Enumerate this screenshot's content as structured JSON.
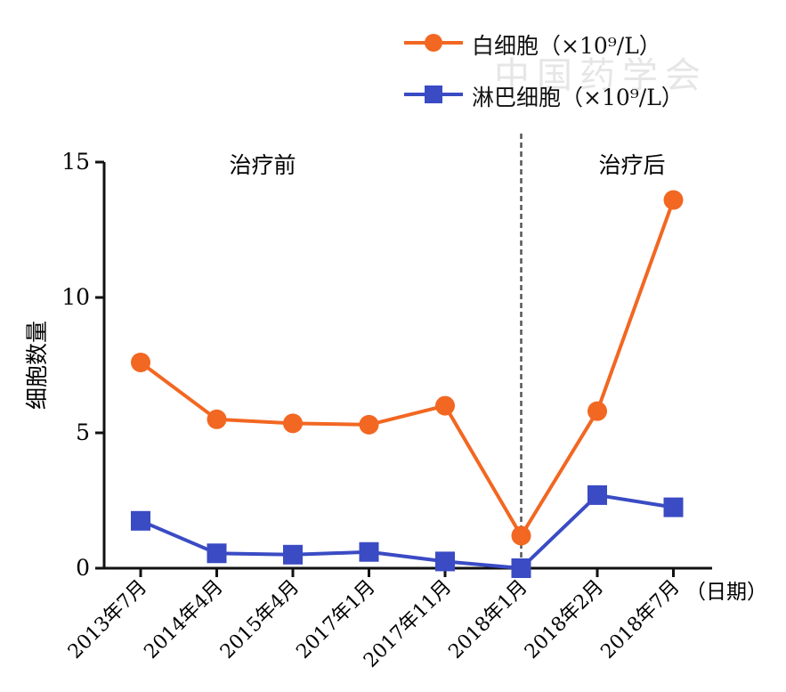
{
  "chart_data": {
    "type": "line",
    "categories": [
      "2013年7月",
      "2014年4月",
      "2015年4月",
      "2017年1月",
      "2017年11月",
      "2018年1月",
      "2018年2月",
      "2018年7月"
    ],
    "series": [
      {
        "name": "白细胞（×10⁹/L）",
        "color": "#f26722",
        "marker": "circle",
        "values": [
          7.6,
          5.5,
          5.35,
          5.3,
          6.0,
          1.2,
          5.8,
          13.6
        ]
      },
      {
        "name": "淋巴细胞（×10⁹/L）",
        "color": "#3a4bc4",
        "marker": "square",
        "values": [
          1.75,
          0.55,
          0.5,
          0.6,
          0.25,
          0.0,
          2.7,
          2.25
        ]
      }
    ],
    "ylabel": "细胞数量",
    "xlabel": "（日期）",
    "ylim": [
      0,
      15
    ],
    "yticks": [
      0,
      5,
      10,
      15
    ],
    "annotations": {
      "before": "治疗前",
      "after": "治疗后",
      "divider_category": "2018年1月"
    },
    "legend_position": "top-right",
    "grid": false
  },
  "watermark": "中国药学会"
}
